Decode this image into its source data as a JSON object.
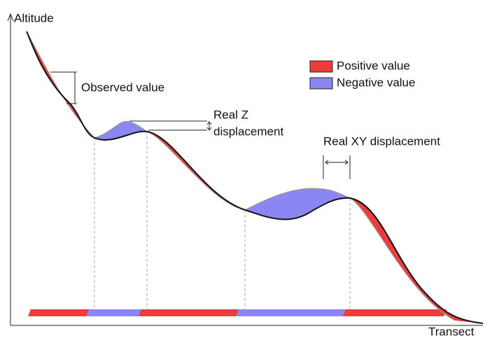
{
  "axes": {
    "y_label": "Altitude",
    "x_label": "Transect"
  },
  "legend": [
    {
      "label": "Positive value"
    },
    {
      "label": "Negative value"
    }
  ],
  "annotations": {
    "observed": "Observed value",
    "real_z": [
      "Real Z",
      "displacement"
    ],
    "real_xy": "Real XY displacement"
  }
}
